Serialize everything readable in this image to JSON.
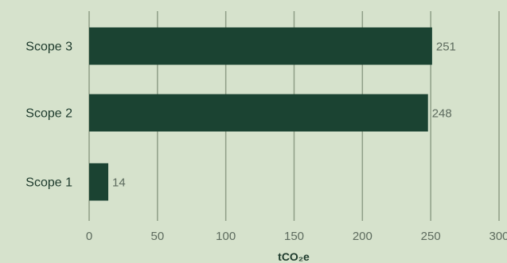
{
  "chart_data": {
    "type": "bar",
    "orientation": "horizontal",
    "title": "",
    "xlabel": "tCO₂e",
    "ylabel": "",
    "categories": [
      "Scope 3",
      "Scope 2",
      "Scope 1"
    ],
    "values": [
      251,
      248,
      14
    ],
    "value_labels": [
      "251",
      "248",
      "14"
    ],
    "xlim": [
      0,
      300
    ],
    "x_ticks": [
      0,
      50,
      100,
      150,
      200,
      250,
      300
    ],
    "x_tick_labels": [
      "0",
      "50",
      "100",
      "150",
      "200",
      "250",
      "300"
    ],
    "grid": "vertical",
    "legend": "none",
    "colors": {
      "bar": "#1b4332",
      "background": "#d6e2cc",
      "grid": "#8f9e87",
      "text": "#1d3a2c",
      "value_text": "#5d6b5e"
    }
  }
}
